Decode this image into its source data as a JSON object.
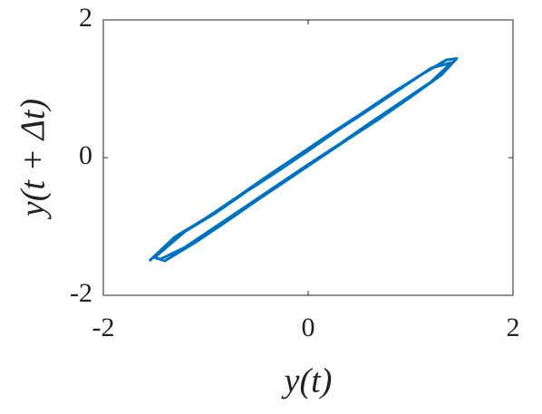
{
  "chart_data": {
    "type": "line",
    "xlabel": "y(t)",
    "ylabel": "y(t + Δt)",
    "xlim": [
      -2,
      2
    ],
    "ylim": [
      -2,
      2
    ],
    "xticks": [
      -2,
      0,
      2
    ],
    "yticks": [
      -2,
      0,
      2
    ],
    "grid": false,
    "series": [
      {
        "name": "trajectory",
        "color": "#0072bd",
        "x": [
          -1.55,
          -1.3,
          -1.0,
          -0.7,
          -0.4,
          -0.1,
          0.2,
          0.5,
          0.8,
          1.1,
          1.35,
          1.45,
          1.3,
          1.0,
          0.7,
          0.4,
          0.1,
          -0.2,
          -0.5,
          -0.8,
          -1.1,
          -1.4,
          -1.5,
          -1.2,
          -0.9,
          -0.6,
          -0.3,
          0.0,
          0.3,
          0.6,
          0.9,
          1.2,
          1.4,
          1.2,
          0.9,
          0.6,
          0.3,
          0.0,
          -0.3,
          -0.6,
          -0.9,
          -1.2,
          -1.45
        ],
        "values": [
          -1.5,
          -1.15,
          -0.88,
          -0.58,
          -0.27,
          0.03,
          0.33,
          0.62,
          0.92,
          1.2,
          1.42,
          1.44,
          1.2,
          0.88,
          0.57,
          0.28,
          -0.02,
          -0.32,
          -0.62,
          -0.93,
          -1.23,
          -1.5,
          -1.45,
          -1.07,
          -0.8,
          -0.49,
          -0.2,
          0.1,
          0.41,
          0.7,
          1.0,
          1.3,
          1.38,
          1.1,
          0.8,
          0.5,
          0.19,
          -0.1,
          -0.4,
          -0.7,
          -1.0,
          -1.3,
          -1.48
        ]
      }
    ]
  }
}
